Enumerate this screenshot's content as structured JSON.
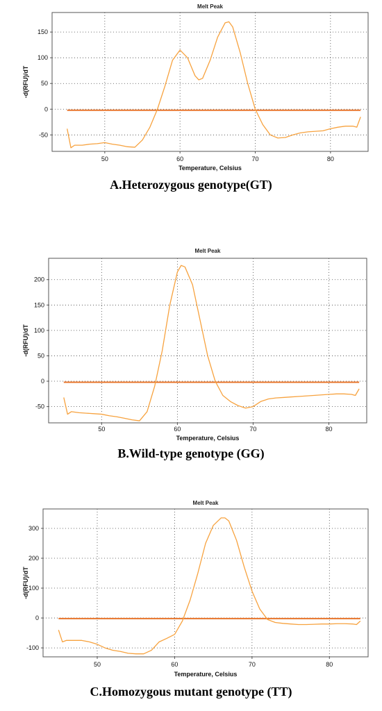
{
  "chart_data": [
    {
      "type": "line",
      "title": "Melt Peak",
      "xlabel": "Temperature, Celsius",
      "ylabel": "-d(RFU)/dT",
      "caption": "A.Heterozygous genotype(GT)",
      "xlim": [
        43,
        85
      ],
      "ylim": [
        -82,
        188
      ],
      "xticks": [
        50,
        60,
        70,
        80
      ],
      "yticks": [
        -50,
        0,
        50,
        100,
        150
      ],
      "grid": true,
      "colors": {
        "curve": "#f7a23e",
        "threshold": "#e8742a"
      },
      "series": [
        {
          "x": [
            45,
            45.5,
            46,
            47,
            48,
            49,
            50,
            51,
            52,
            53,
            54,
            55,
            56,
            57,
            58,
            59,
            60,
            61,
            62,
            62.5,
            63,
            64,
            65,
            66,
            66.5,
            67,
            68,
            69,
            70,
            71,
            72,
            73,
            74,
            75,
            76,
            77,
            78,
            79,
            80,
            81,
            82,
            83,
            83.5,
            84
          ],
          "y": [
            -38,
            -75,
            -70,
            -70,
            -68,
            -67,
            -65,
            -68,
            -70,
            -73,
            -74,
            -60,
            -35,
            0,
            45,
            95,
            115,
            100,
            65,
            57,
            60,
            95,
            140,
            168,
            170,
            160,
            110,
            50,
            0,
            -30,
            -50,
            -56,
            -55,
            -50,
            -46,
            -44,
            -43,
            -42,
            -38,
            -35,
            -33,
            -33,
            -35,
            -15
          ]
        },
        {
          "x": [
            45,
            84
          ],
          "y": [
            -2,
            -2
          ]
        }
      ]
    },
    {
      "type": "line",
      "title": "Melt Peak",
      "xlabel": "Temperature, Celsius",
      "ylabel": "-d(RFU)/dT",
      "caption": "B.Wild-type genotype (GG)",
      "xlim": [
        43,
        85
      ],
      "ylim": [
        -82,
        242
      ],
      "xticks": [
        50,
        60,
        70,
        80
      ],
      "yticks": [
        -50,
        0,
        50,
        100,
        150,
        200
      ],
      "grid": true,
      "colors": {
        "curve": "#f7a23e",
        "threshold": "#e8742a"
      },
      "series": [
        {
          "x": [
            45,
            45.5,
            46,
            47,
            48,
            49,
            50,
            51,
            52,
            53,
            54,
            55,
            56,
            57,
            58,
            59,
            60,
            60.5,
            61,
            62,
            63,
            64,
            65,
            66,
            67,
            68,
            69,
            70,
            71,
            72,
            73,
            74,
            75,
            76,
            77,
            78,
            79,
            80,
            81,
            82,
            83,
            83.5,
            84
          ],
          "y": [
            -32,
            -65,
            -60,
            -62,
            -63,
            -64,
            -65,
            -68,
            -70,
            -73,
            -76,
            -78,
            -60,
            -10,
            60,
            150,
            215,
            228,
            225,
            190,
            120,
            50,
            0,
            -28,
            -40,
            -48,
            -53,
            -50,
            -40,
            -35,
            -33,
            -32,
            -31,
            -30,
            -29,
            -28,
            -27,
            -26,
            -25,
            -25,
            -26,
            -28,
            -15
          ]
        },
        {
          "x": [
            45,
            84
          ],
          "y": [
            -2,
            -2
          ]
        }
      ]
    },
    {
      "type": "line",
      "title": "Melt Peak",
      "xlabel": "Temperature, Celsius",
      "ylabel": "-d(RFU)/dT",
      "caption": "C.Homozygous mutant genotype  (TT)",
      "xlim": [
        43,
        85
      ],
      "ylim": [
        -130,
        365
      ],
      "xticks": [
        50,
        60,
        70,
        80
      ],
      "yticks": [
        -100,
        0,
        100,
        200,
        300
      ],
      "grid": true,
      "colors": {
        "curve": "#f7a23e",
        "threshold": "#e8742a"
      },
      "series": [
        {
          "x": [
            45,
            45.5,
            46,
            47,
            48,
            49,
            50,
            51,
            52,
            53,
            54,
            55,
            56,
            57,
            58,
            59,
            60,
            61,
            62,
            63,
            64,
            65,
            66,
            66.5,
            67,
            68,
            69,
            70,
            71,
            72,
            73,
            74,
            75,
            76,
            77,
            78,
            79,
            80,
            81,
            82,
            83,
            83.5,
            84
          ],
          "y": [
            -40,
            -80,
            -75,
            -75,
            -75,
            -80,
            -88,
            -100,
            -108,
            -112,
            -118,
            -120,
            -120,
            -108,
            -80,
            -68,
            -55,
            -10,
            60,
            150,
            250,
            310,
            335,
            335,
            325,
            260,
            170,
            90,
            30,
            -5,
            -15,
            -18,
            -20,
            -22,
            -22,
            -21,
            -20,
            -20,
            -19,
            -19,
            -20,
            -22,
            -10
          ]
        },
        {
          "x": [
            45,
            84
          ],
          "y": [
            -2,
            -2
          ]
        }
      ]
    }
  ]
}
